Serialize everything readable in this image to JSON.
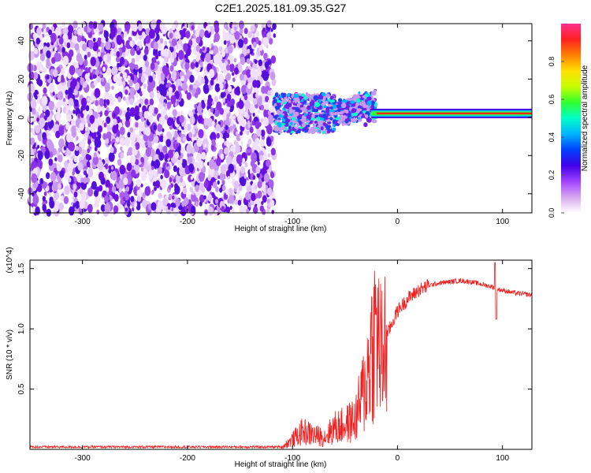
{
  "title": "C2E1.2025.181.09.35.G27",
  "chart_data": [
    {
      "type": "heatmap",
      "xlabel": "Height of straight line (km)",
      "ylabel": "Frequency (Hz)",
      "xlim": [
        -350,
        128
      ],
      "ylim": [
        -50,
        49
      ],
      "x_ticks": [
        -300,
        -200,
        -100,
        0,
        100
      ],
      "y_ticks": [
        -40,
        -20,
        0,
        20,
        40
      ],
      "colorbar": {
        "label": "Normalized spectral amplitude",
        "range": [
          0,
          1
        ],
        "ticks": [
          "0.0",
          "0.2",
          "0.4",
          "0.6",
          "0.8"
        ],
        "colors": [
          "#ffffff",
          "#d8a8f0",
          "#a040ff",
          "#4000e8",
          "#0040ff",
          "#00b4ff",
          "#00ffc8",
          "#30ff30",
          "#c8ff00",
          "#ffe000",
          "#ff8000",
          "#ff2020",
          "#ff3090"
        ]
      },
      "features": {
        "noise_region_x": [
          -350,
          -117
        ],
        "signal_line_frequency_hz": 2,
        "signal_onset_x": -117
      }
    },
    {
      "type": "line",
      "xlabel": "Height of straight line (km)",
      "ylabel": "SNR (10 * v/v)",
      "scale_label": "(x10^4)",
      "xlim": [
        -350,
        128
      ],
      "ylim": [
        0,
        1.57
      ],
      "x_ticks": [
        -300,
        -200,
        -100,
        0,
        100
      ],
      "y_ticks": [
        "0.5",
        "1.0",
        "1.5"
      ],
      "series": [
        {
          "color": "#ee2020",
          "x": [
            -350,
            -300,
            -200,
            -110,
            -100,
            -90,
            -80,
            -70,
            -60,
            -50,
            -40,
            -30,
            -25,
            -20,
            -15,
            -10,
            -5,
            0,
            10,
            20,
            30,
            40,
            50,
            60,
            70,
            80,
            90,
            95,
            100,
            110,
            128
          ],
          "y": [
            0.02,
            0.02,
            0.02,
            0.02,
            0.08,
            0.15,
            0.12,
            0.1,
            0.18,
            0.2,
            0.25,
            0.55,
            0.85,
            1.0,
            0.75,
            0.95,
            1.05,
            1.15,
            1.25,
            1.32,
            1.36,
            1.38,
            1.39,
            1.4,
            1.39,
            1.37,
            1.35,
            1.33,
            1.32,
            1.3,
            1.28
          ]
        }
      ]
    }
  ]
}
